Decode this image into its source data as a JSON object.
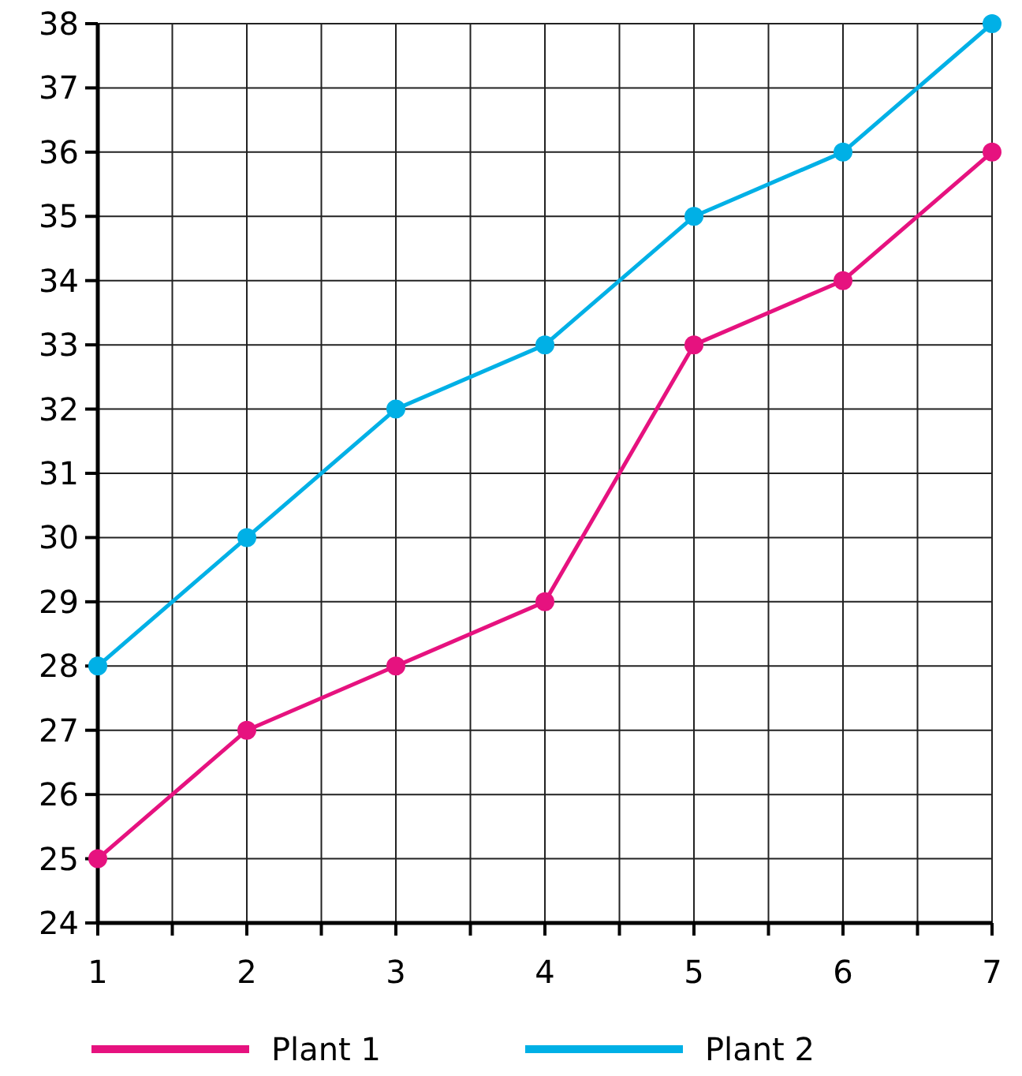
{
  "chart_data": {
    "type": "line",
    "x": [
      1,
      2,
      3,
      4,
      5,
      6,
      7
    ],
    "series": [
      {
        "name": "Plant 1",
        "color": "#e6127f",
        "values": [
          25,
          27,
          28,
          29,
          33,
          34,
          36
        ]
      },
      {
        "name": "Plant 2",
        "color": "#00b0e6",
        "values": [
          28,
          30,
          32,
          33,
          35,
          36,
          38
        ]
      }
    ],
    "xlim": [
      1,
      7
    ],
    "xticks": [
      1,
      {
        "value": 1.5,
        "label": null
      },
      2,
      {
        "value": 2.5,
        "label": null
      },
      3,
      {
        "value": 3.5,
        "label": null
      },
      4,
      {
        "value": 4.5,
        "label": null
      },
      5,
      {
        "value": 5.5,
        "label": null
      },
      6,
      {
        "value": 6.5,
        "label": null
      },
      7
    ],
    "ylim": [
      24,
      38
    ],
    "yticks": [
      24,
      25,
      26,
      27,
      28,
      29,
      30,
      31,
      32,
      33,
      34,
      35,
      36,
      37,
      38
    ],
    "grid": true,
    "legend": "bottom",
    "marker": "circle",
    "line_style": "solid"
  }
}
